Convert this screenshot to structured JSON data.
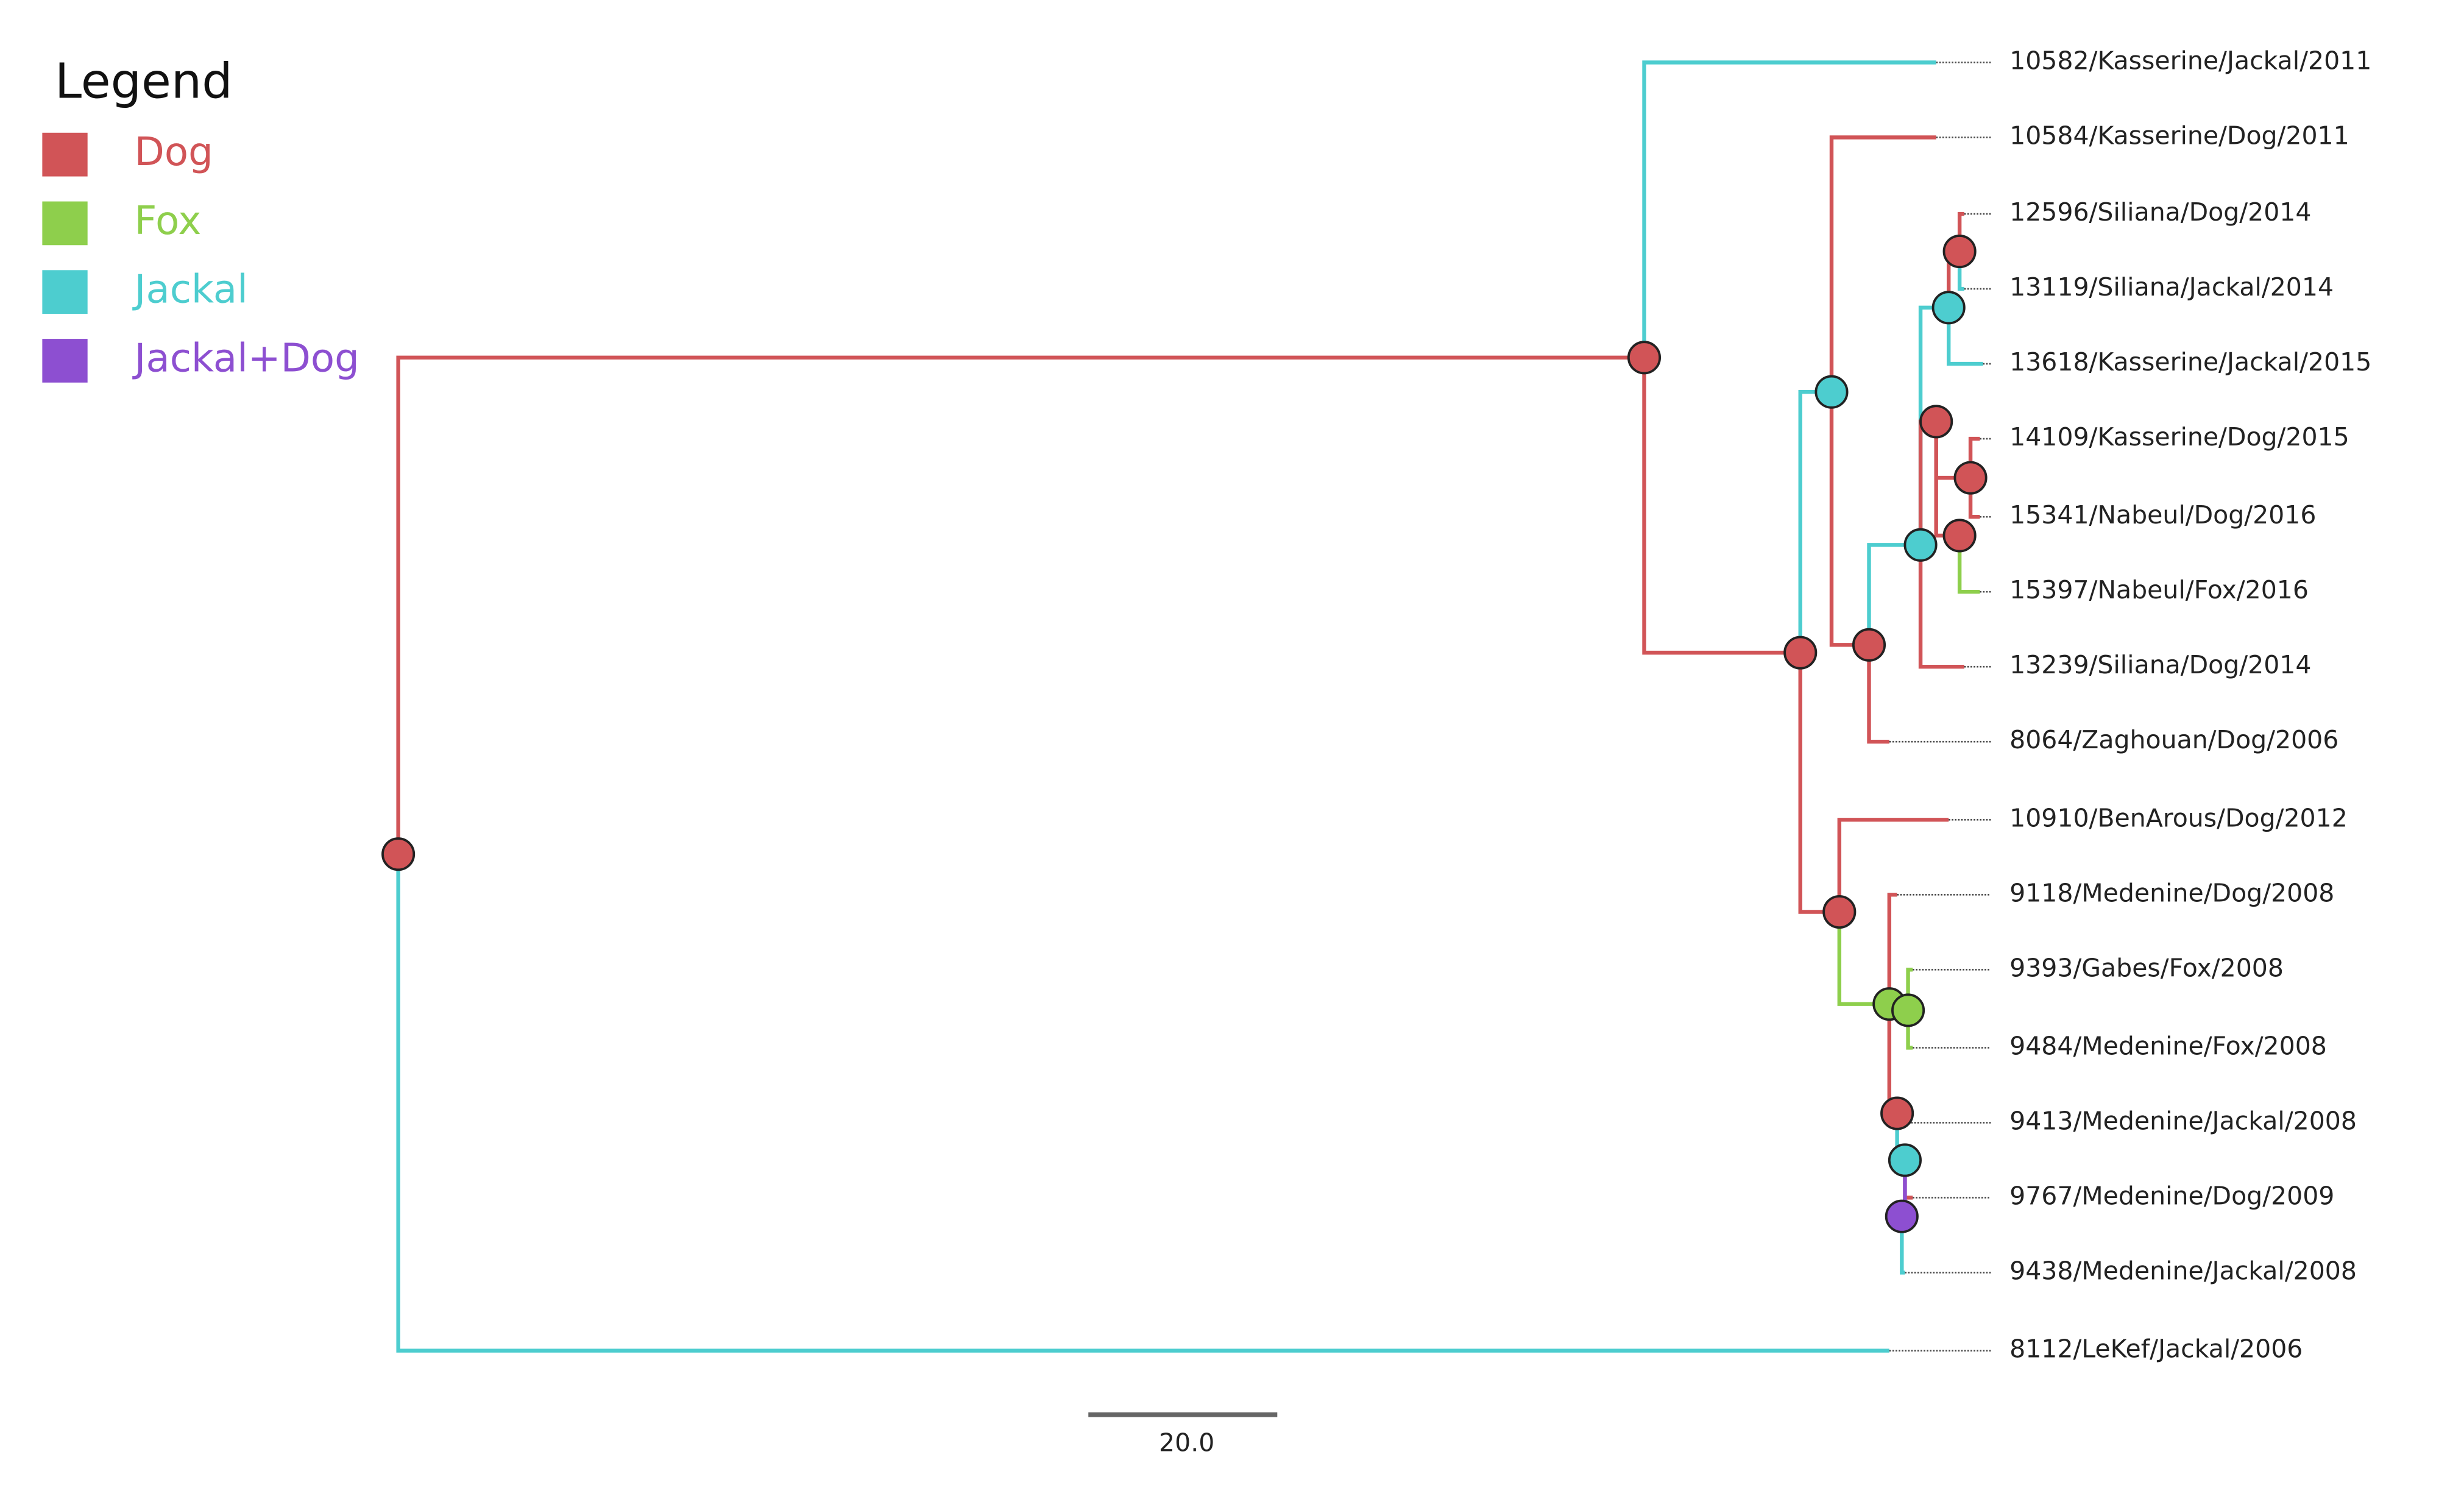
{
  "legend": {
    "title": "Legend",
    "items": [
      {
        "label": "Dog",
        "color": "#d15457"
      },
      {
        "label": "Fox",
        "color": "#8ecf4c"
      },
      {
        "label": "Jackal",
        "color": "#4dcdcf"
      },
      {
        "label": "Jackal+Dog",
        "color": "#8d4fd1"
      }
    ]
  },
  "leaves": [
    "10582/Kasserine/Jackal/2011",
    "10584/Kasserine/Dog/2011",
    "12596/Siliana/Dog/2014",
    "13119/Siliana/Jackal/2014",
    "13618/Kasserine/Jackal/2015",
    "14109/Kasserine/Dog/2015",
    "15341/Nabeul/Dog/2016",
    "15397/Nabeul/Fox/2016",
    "13239/Siliana/Dog/2014",
    "8064/Zaghouan/Dog/2006",
    "10910/BenArous/Dog/2012",
    "9118/Medenine/Dog/2008",
    "9393/Gabes/Fox/2008",
    "9484/Medenine/Fox/2008",
    "9413/Medenine/Jackal/2008",
    "9767/Medenine/Dog/2009",
    "9438/Medenine/Jackal/2008",
    "8112/LeKef/Jackal/2006"
  ],
  "scale_bar": {
    "label": "20.0"
  }
}
